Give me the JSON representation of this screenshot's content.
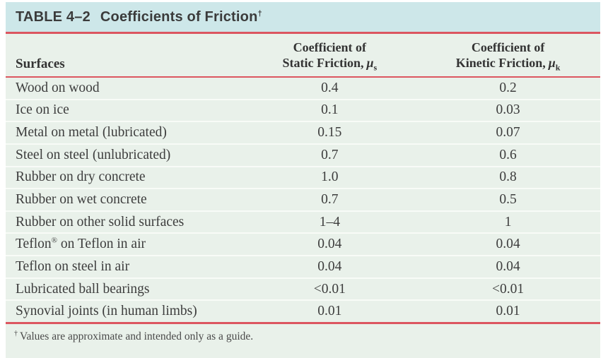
{
  "table": {
    "title": {
      "label": "TABLE 4–2",
      "name": "Coefficients of Friction",
      "marker": "†"
    },
    "columns": {
      "surfaces": "Surfaces",
      "static": {
        "line1": "Coefficient of",
        "line2": "Static Friction,",
        "mu": "μ",
        "sub": "s"
      },
      "kinetic": {
        "line1": "Coefficient of",
        "line2": "Kinetic Friction,",
        "mu": "μ",
        "sub": "k"
      }
    },
    "rows": [
      {
        "surface": "Wood on wood",
        "static": "0.4",
        "kinetic": "0.2"
      },
      {
        "surface": "Ice on ice",
        "static": "0.1",
        "kinetic": "0.03"
      },
      {
        "surface": "Metal on metal (lubricated)",
        "static": "0.15",
        "kinetic": "0.07"
      },
      {
        "surface": "Steel on steel (unlubricated)",
        "static": "0.7",
        "kinetic": "0.6"
      },
      {
        "surface": "Rubber on dry concrete",
        "static": "1.0",
        "kinetic": "0.8"
      },
      {
        "surface": "Rubber on wet concrete",
        "static": "0.7",
        "kinetic": "0.5"
      },
      {
        "surface": "Rubber on other solid surfaces",
        "static": "1–4",
        "kinetic": "1"
      },
      {
        "surface": "Teflon® on Teflon in air",
        "static": "0.04",
        "kinetic": "0.04"
      },
      {
        "surface": "Teflon on steel in air",
        "static": "0.04",
        "kinetic": "0.04"
      },
      {
        "surface": "Lubricated ball bearings",
        "static": "<0.01",
        "kinetic": "<0.01"
      },
      {
        "surface": "Synovial joints (in human limbs)",
        "static": "0.01",
        "kinetic": "0.01"
      }
    ],
    "footnote": {
      "marker": "†",
      "text": "Values are approximate and intended only as a guide."
    }
  },
  "colors": {
    "title_band": "#cde7e9",
    "body_band": "#e9f1ea",
    "rule_red": "#dc5660",
    "row_separator": "#f8fbf7",
    "text": "#3a3a3a"
  }
}
